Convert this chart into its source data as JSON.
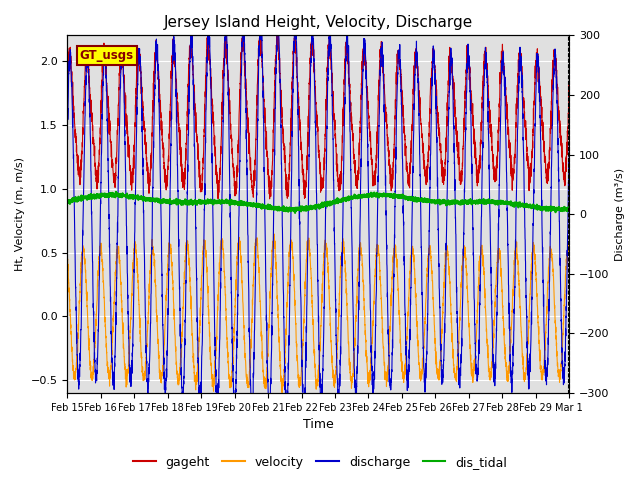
{
  "title": "Jersey Island Height, Velocity, Discharge",
  "xlabel": "Time",
  "ylabel_left": "Ht, Velocity (m, m/s)",
  "ylabel_right": "Discharge (m³/s)",
  "ylim_left": [
    -0.6,
    2.2
  ],
  "ylim_right": [
    -300,
    300
  ],
  "xtick_labels": [
    "Feb 15",
    "Feb 16",
    "Feb 17",
    "Feb 18",
    "Feb 19",
    "Feb 20",
    "Feb 21",
    "Feb 22",
    "Feb 23",
    "Feb 24",
    "Feb 25",
    "Feb 26",
    "Feb 27",
    "Feb 28",
    "Feb 29",
    "Mar 1"
  ],
  "legend_labels": [
    "gageht",
    "velocity",
    "discharge",
    "dis_tidal"
  ],
  "legend_colors": [
    "#cc0000",
    "#ff9900",
    "#0000cc",
    "#00aa00"
  ],
  "gt_usgs_box_color": "#ffff00",
  "gt_usgs_border_color": "#880000",
  "background_color": "#e0e0e0",
  "tidal_period_hours": 12.42,
  "n_points": 4000,
  "figsize": [
    6.4,
    4.8
  ],
  "dpi": 100
}
